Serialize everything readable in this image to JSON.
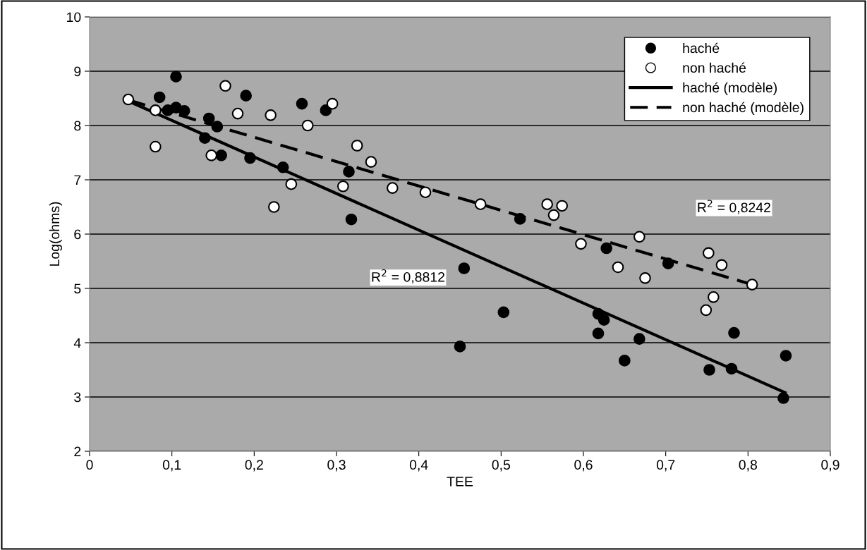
{
  "chart_data": {
    "type": "scatter",
    "xlabel": "TEE",
    "ylabel": "Log(ohms)",
    "xlim": [
      0,
      0.9
    ],
    "xticks": [
      {
        "value": 0,
        "label": "0"
      },
      {
        "value": 0.1,
        "label": "0,1"
      },
      {
        "value": 0.2,
        "label": "0,2"
      },
      {
        "value": 0.3,
        "label": "0,3"
      },
      {
        "value": 0.4,
        "label": "0,4"
      },
      {
        "value": 0.5,
        "label": "0,5"
      },
      {
        "value": 0.6,
        "label": "0,6"
      },
      {
        "value": 0.7,
        "label": "0,7"
      },
      {
        "value": 0.8,
        "label": "0,8"
      },
      {
        "value": 0.9,
        "label": "0,9"
      }
    ],
    "ylim": [
      2,
      10
    ],
    "yticks": [
      2,
      3,
      4,
      5,
      6,
      7,
      8,
      9,
      10
    ],
    "grid": "y",
    "legend": "top right",
    "marker": "circle",
    "series": [
      {
        "name": "haché",
        "color": "#000000",
        "x": [
          0.085,
          0.095,
          0.105,
          0.105,
          0.115,
          0.14,
          0.145,
          0.155,
          0.16,
          0.19,
          0.195,
          0.235,
          0.258,
          0.287,
          0.315,
          0.318,
          0.45,
          0.455,
          0.503,
          0.523,
          0.618,
          0.618,
          0.625,
          0.628,
          0.65,
          0.668,
          0.703,
          0.753,
          0.78,
          0.783,
          0.84,
          0.843,
          0.846
        ],
        "values": [
          8.52,
          8.28,
          8.9,
          8.33,
          8.27,
          7.77,
          8.13,
          7.98,
          7.45,
          8.55,
          7.4,
          7.23,
          8.4,
          8.28,
          7.15,
          6.27,
          3.93,
          5.37,
          4.56,
          6.28,
          4.53,
          4.17,
          4.42,
          5.74,
          3.67,
          4.07,
          5.46,
          3.5,
          3.52,
          4.18,
          null,
          2.98,
          3.76
        ]
      },
      {
        "name": "non haché",
        "color": "#ffffff",
        "x": [
          0.047,
          0.08,
          0.08,
          0.148,
          0.163,
          0.165,
          0.18,
          0.22,
          0.224,
          0.245,
          0.265,
          0.295,
          0.308,
          0.325,
          0.342,
          0.368,
          0.408,
          0.475,
          0.556,
          0.564,
          0.574,
          0.597,
          0.642,
          0.668,
          0.675,
          0.749,
          0.752,
          0.758,
          0.768,
          0.805
        ],
        "values": [
          8.48,
          7.61,
          8.28,
          7.45,
          null,
          8.73,
          8.22,
          8.19,
          6.5,
          6.92,
          8.0,
          8.4,
          6.88,
          7.63,
          7.33,
          6.85,
          6.77,
          6.55,
          6.55,
          6.35,
          6.52,
          5.82,
          5.39,
          5.95,
          5.19,
          4.6,
          5.65,
          4.84,
          5.43,
          5.07
        ]
      },
      {
        "name": "haché (modèle)",
        "type": "line",
        "color": "#000000",
        "line_style": "solid",
        "marker": "none",
        "x": [
          0.047,
          0.845
        ],
        "values": [
          8.45,
          3.08
        ]
      },
      {
        "name": "non haché (modèle)",
        "type": "line",
        "color": "#000000",
        "line_style": "dashed",
        "marker": "none",
        "x": [
          0.047,
          0.805
        ],
        "values": [
          8.47,
          5.07
        ]
      }
    ],
    "annotations": [
      "R$^{2}$ = 0,8812",
      "R$^{2}$ = 0,8242"
    ]
  }
}
